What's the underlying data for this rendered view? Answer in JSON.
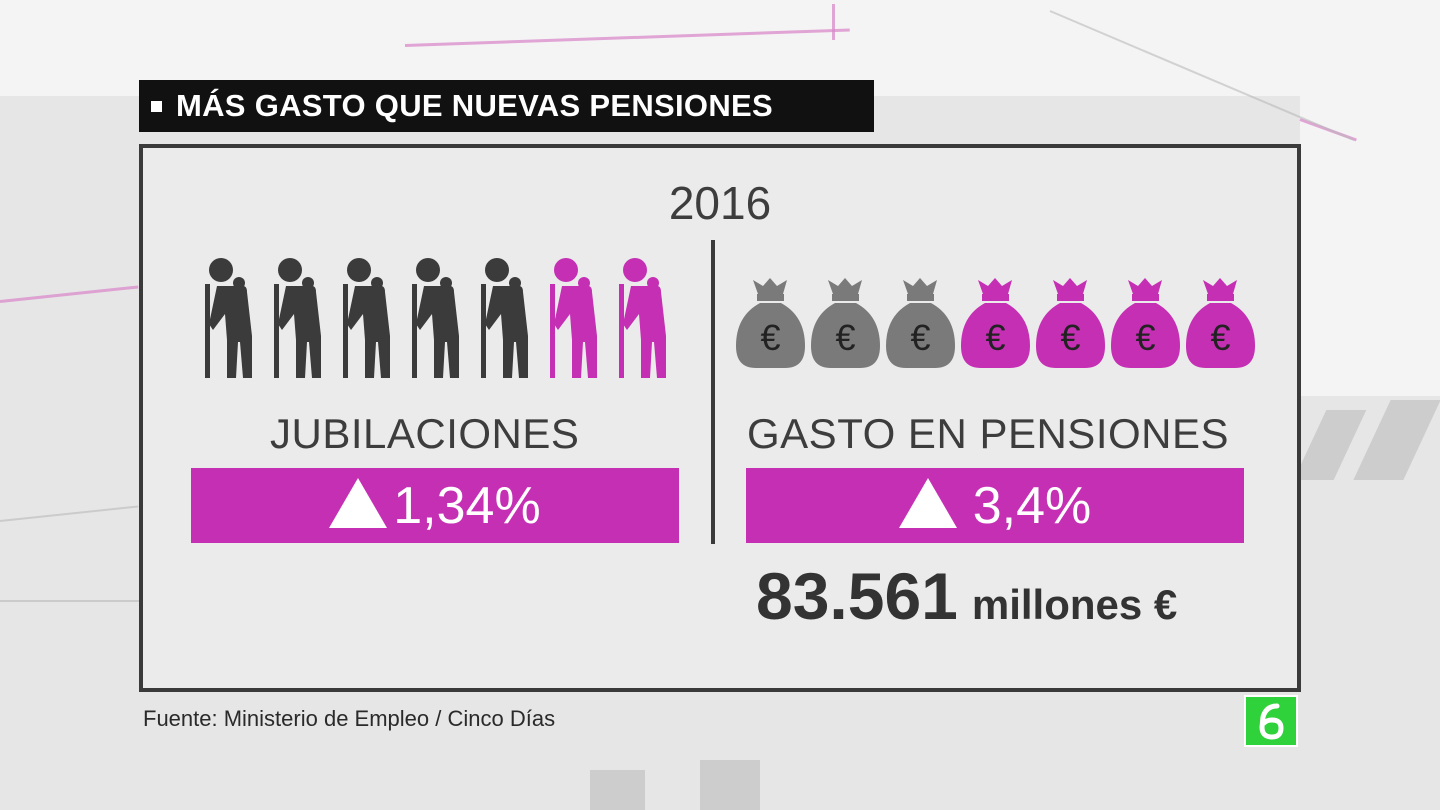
{
  "header": {
    "title": "MÁS GASTO QUE NUEVAS PENSIONES"
  },
  "year": "2016",
  "left": {
    "label": "JUBILACIONES",
    "change": "1,34%",
    "icon": "elderly-person-icon",
    "icon_count": 7,
    "highlighted_count": 2
  },
  "right": {
    "label": "GASTO EN PENSIONES",
    "change": "3,4%",
    "amount_value": "83.561",
    "amount_unit": "millones €",
    "icon": "euro-money-bag-icon",
    "icon_count": 7,
    "highlighted_count": 4
  },
  "source": "Fuente: Ministerio de Empleo / Cinco Días",
  "colors": {
    "accent": "#c52fb4",
    "icon_dark": "#3b3b3b",
    "bag_gray": "#7a7a7a",
    "logo_green": "#2fd23a"
  }
}
